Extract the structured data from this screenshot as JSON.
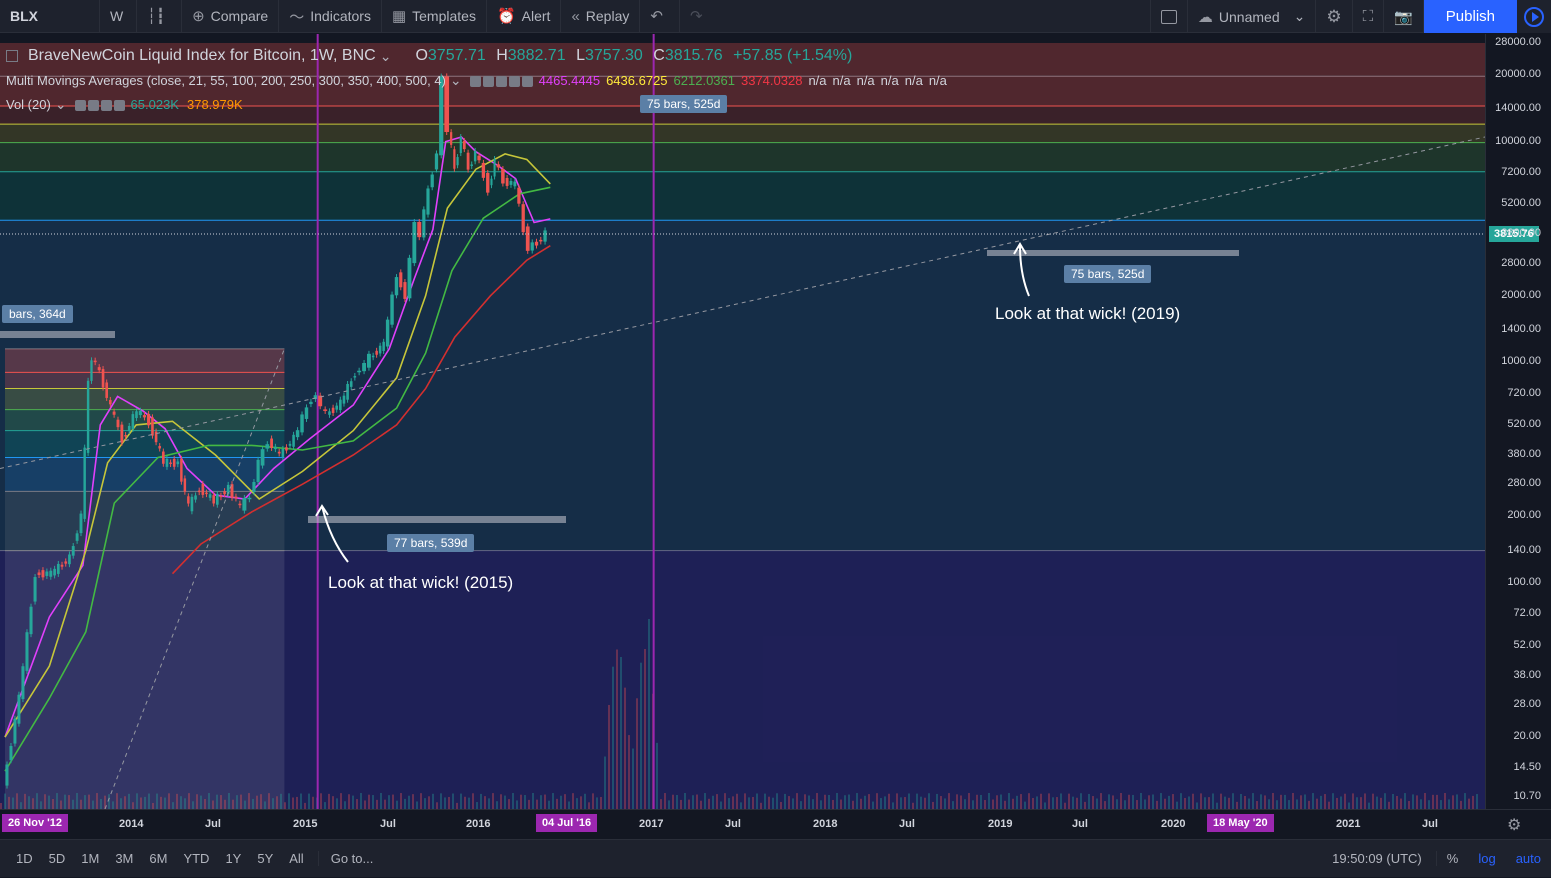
{
  "toolbar": {
    "symbol": "BLX",
    "interval": "W",
    "compare": "Compare",
    "indicators": "Indicators",
    "templates": "Templates",
    "alert": "Alert",
    "replay": "Replay",
    "layout_name": "Unnamed",
    "publish": "Publish"
  },
  "legend": {
    "title": "BraveNewCoin Liquid Index for Bitcoin, 1W, BNC",
    "o_key": "O",
    "o": "3757.71",
    "h_key": "H",
    "h": "3882.71",
    "l_key": "L",
    "l": "3757.30",
    "c_key": "C",
    "c": "3815.76",
    "change": "+57.85 (+1.54%)",
    "mma_label": "Multi Movings Averages (close, 21, 55, 100, 200, 250, 300, 350, 400, 500, 4)",
    "mma_values": [
      {
        "v": "4465.4445",
        "color": "#e040fb"
      },
      {
        "v": "6436.6725",
        "color": "#ffeb3b"
      },
      {
        "v": "6212.0361",
        "color": "#4caf50"
      },
      {
        "v": "3374.0328",
        "color": "#f23645"
      },
      {
        "v": "n/a",
        "color": "#d1d4dc"
      },
      {
        "v": "n/a",
        "color": "#d1d4dc"
      },
      {
        "v": "n/a",
        "color": "#d1d4dc"
      },
      {
        "v": "n/a",
        "color": "#d1d4dc"
      },
      {
        "v": "n/a",
        "color": "#d1d4dc"
      },
      {
        "v": "n/a",
        "color": "#d1d4dc"
      }
    ],
    "vol_label": "Vol (20)",
    "vol_1": "65.023K",
    "vol_2": "378.979K"
  },
  "annotations": {
    "wick_2015": "Look at that wick! (2015)",
    "wick_2019": "Look at that wick! (2019)",
    "bars_364": "bars, 364d",
    "bars_539": "77 bars, 539d",
    "bars_525_top": "75 bars, 525d",
    "bars_525_bottom": "75 bars, 525d"
  },
  "bottom": {
    "timeframes": [
      "1D",
      "5D",
      "1M",
      "3M",
      "6M",
      "YTD",
      "1Y",
      "5Y",
      "All"
    ],
    "goto": "Go to...",
    "clock": "19:50:09 (UTC)",
    "pct": "%",
    "log": "log",
    "auto": "auto"
  },
  "colors": {
    "up": "#26a69a",
    "down": "#ef5350",
    "ma21": "#e040fb",
    "ma55": "#c6c63a",
    "ma100": "#43b943",
    "ma200": "#d32f2f",
    "vline": "#9c27b0"
  },
  "chart_data": {
    "type": "line",
    "title": "BraveNewCoin Liquid Index for Bitcoin, 1W, BNC",
    "scale": "log",
    "price_axis_ticks": [
      "28000.00",
      "20000.00",
      "14000.00",
      "10000.00",
      "7200.00",
      "5200.00",
      "3800.00",
      "2800.00",
      "2000.00",
      "1400.00",
      "1000.00",
      "720.00",
      "520.00",
      "380.00",
      "280.00",
      "200.00",
      "140.00",
      "100.00",
      "72.00",
      "52.00",
      "38.00",
      "28.00",
      "20.00",
      "14.50",
      "10.70"
    ],
    "time_axis_ticks": [
      "2014",
      "Jul",
      "2015",
      "Jul",
      "2016",
      "2017",
      "Jul",
      "2018",
      "Jul",
      "2019",
      "Jul",
      "2020",
      "2021",
      "Jul"
    ],
    "time_markers": [
      "26 Nov '12",
      "04 Jul '16",
      "18 May '20"
    ],
    "last_price": "3815.76",
    "ylim": [
      10,
      28000
    ],
    "xlim": [
      "2012-11-26",
      "2021-11-01"
    ],
    "vlines": [
      "2016-07-04",
      "2020-05-18"
    ],
    "fib_box_1": {
      "x0": "2012-11-26",
      "x1": "2016-02-15",
      "levels": [
        1150,
        900,
        760,
        610,
        490,
        370,
        260,
        140
      ]
    },
    "fib_box_2": {
      "x0": "2012-11-26",
      "x1": "2021-11-01",
      "levels": [
        19800,
        14500,
        12000,
        9900,
        7300,
        4400,
        140
      ]
    },
    "price": {
      "x": [
        "2012-11-26",
        "2013-02-01",
        "2013-04-10",
        "2013-06-15",
        "2013-09-01",
        "2013-10-20",
        "2013-11-18",
        "2013-12-02",
        "2014-01-05",
        "2014-02-20",
        "2014-04-10",
        "2014-06-10",
        "2014-08-01",
        "2014-10-01",
        "2014-12-01",
        "2015-01-14",
        "2015-03-01",
        "2015-05-01",
        "2015-07-01",
        "2015-08-20",
        "2015-10-01",
        "2015-11-05",
        "2015-12-15",
        "2016-02-01",
        "2016-04-01",
        "2016-06-15",
        "2016-07-04",
        "2016-08-15",
        "2016-10-15",
        "2016-12-15",
        "2017-01-05",
        "2017-02-15",
        "2017-04-15",
        "2017-06-10",
        "2017-07-15",
        "2017-08-25",
        "2017-09-15",
        "2017-10-20",
        "2017-11-25",
        "2017-12-17",
        "2018-01-10",
        "2018-02-06",
        "2018-03-05",
        "2018-04-06",
        "2018-05-05",
        "2018-06-29",
        "2018-07-25",
        "2018-09-01",
        "2018-10-20",
        "2018-11-25",
        "2018-12-15",
        "2019-01-20",
        "2019-02-25"
      ],
      "y": [
        12,
        30,
        110,
        110,
        130,
        200,
        800,
        1050,
        900,
        620,
        450,
        600,
        540,
        350,
        350,
        220,
        270,
        235,
        270,
        220,
        250,
        350,
        440,
        380,
        450,
        690,
        700,
        580,
        650,
        900,
        920,
        1050,
        1200,
        2500,
        2000,
        4200,
        3800,
        6000,
        9000,
        19000,
        11500,
        7500,
        10500,
        7500,
        9000,
        6100,
        8200,
        6600,
        6400,
        4000,
        3300,
        3500,
        3815.76
      ]
    },
    "series": [
      {
        "name": "Multi Movings Averages 21",
        "color": "#e040fb",
        "x": [
          "2012-11-26",
          "2013-06-01",
          "2013-10-20",
          "2014-01-01",
          "2014-03-15",
          "2014-07-01",
          "2014-10-01",
          "2015-01-01",
          "2015-05-01",
          "2015-09-01",
          "2016-01-01",
          "2016-06-01",
          "2016-12-01",
          "2017-05-01",
          "2017-08-15",
          "2017-11-01",
          "2017-12-25",
          "2018-03-01",
          "2018-05-01",
          "2018-08-01",
          "2018-10-15",
          "2019-01-01",
          "2019-03-10"
        ],
        "y": [
          20,
          70,
          120,
          520,
          700,
          600,
          500,
          330,
          250,
          240,
          330,
          450,
          640,
          1150,
          2400,
          4000,
          10000,
          10500,
          9000,
          7800,
          6800,
          4300,
          4465.4445
        ]
      },
      {
        "name": "Multi Movings Averages 55",
        "color": "#c6c63a",
        "x": [
          "2012-11-26",
          "2013-06-01",
          "2013-11-01",
          "2014-02-01",
          "2014-06-01",
          "2014-11-01",
          "2015-05-01",
          "2015-11-01",
          "2016-05-01",
          "2016-12-01",
          "2017-06-01",
          "2017-10-01",
          "2018-01-01",
          "2018-05-01",
          "2018-09-01",
          "2018-12-01",
          "2019-03-10"
        ],
        "y": [
          20,
          42,
          140,
          350,
          520,
          540,
          380,
          240,
          320,
          490,
          850,
          2000,
          5000,
          7500,
          8800,
          8300,
          6436.6725
        ]
      },
      {
        "name": "Multi Movings Averages 100",
        "color": "#43b943",
        "x": [
          "2012-11-26",
          "2013-06-01",
          "2013-11-01",
          "2014-03-01",
          "2014-09-01",
          "2015-04-01",
          "2015-10-01",
          "2016-05-01",
          "2016-12-01",
          "2017-06-01",
          "2017-10-01",
          "2018-01-20",
          "2018-06-01",
          "2018-11-01",
          "2019-03-10"
        ],
        "y": [
          14,
          30,
          60,
          230,
          370,
          420,
          420,
          400,
          440,
          620,
          1100,
          2600,
          4500,
          5800,
          6212.0361
        ]
      },
      {
        "name": "Multi Movings Averages 200",
        "color": "#d32f2f",
        "x": [
          "2014-11-01",
          "2015-03-01",
          "2015-10-01",
          "2016-05-01",
          "2016-12-01",
          "2017-06-01",
          "2017-10-01",
          "2018-02-01",
          "2018-07-01",
          "2018-12-01",
          "2019-03-10"
        ],
        "y": [
          110,
          150,
          210,
          280,
          380,
          520,
          760,
          1300,
          2000,
          2900,
          3374.0328
        ]
      },
      {
        "name": "Support trend line",
        "x": [
          "2012-11-26",
          "2019-03-10",
          "2021-11-01"
        ],
        "y": [
          330,
          3815.76,
          10500
        ]
      }
    ]
  }
}
